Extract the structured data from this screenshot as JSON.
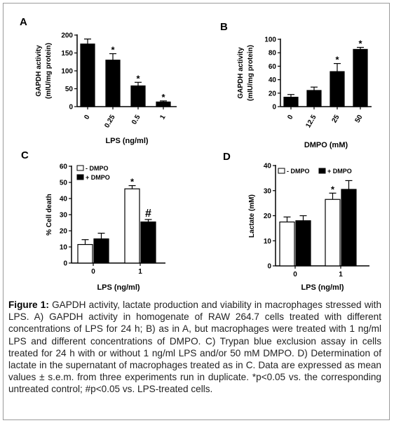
{
  "chart_data": [
    {
      "panel": "A",
      "type": "bar",
      "categories": [
        "0",
        "0.25",
        "0.5",
        "1"
      ],
      "values": [
        175,
        130,
        58,
        13
      ],
      "errors": [
        14,
        18,
        10,
        3
      ],
      "annotations": [
        "",
        "*",
        "*",
        "*"
      ],
      "xlabel": "LPS (ng/ml)",
      "ylabel": [
        "GAPDH activity",
        "(mIU/mg protein)"
      ],
      "yticks": [
        0,
        50,
        100,
        150,
        200
      ],
      "ylim": [
        0,
        200
      ],
      "bar_color": "#000000"
    },
    {
      "panel": "B",
      "type": "bar",
      "categories": [
        "0",
        "12.5",
        "25",
        "50"
      ],
      "values": [
        14,
        24,
        52,
        85
      ],
      "errors": [
        4,
        5,
        12,
        3
      ],
      "annotations": [
        "",
        "",
        "*",
        "*"
      ],
      "xlabel": "DMPO (mM)",
      "ylabel": [
        "GAPDH activity",
        "(mIU/mg protein)"
      ],
      "yticks": [
        0,
        20,
        40,
        60,
        80,
        100
      ],
      "ylim": [
        0,
        100
      ],
      "bar_color": "#000000"
    },
    {
      "panel": "C",
      "type": "bar",
      "categories": [
        "0",
        "1"
      ],
      "series": [
        {
          "name": "- DMPO",
          "values": [
            11.5,
            46
          ],
          "errors": [
            3,
            2
          ],
          "annotations": [
            "",
            "*"
          ],
          "color": "#ffffff"
        },
        {
          "name": "+ DMPO",
          "values": [
            15,
            25.5
          ],
          "errors": [
            3.5,
            1.5
          ],
          "annotations": [
            "",
            "#"
          ],
          "color": "#000000"
        }
      ],
      "xlabel": "LPS (ng/ml)",
      "ylabel": "% Cell death",
      "yticks": [
        0,
        10,
        20,
        30,
        40,
        50,
        60
      ],
      "ylim": [
        0,
        60
      ],
      "legend": "top-left"
    },
    {
      "panel": "D",
      "type": "bar",
      "categories": [
        "0",
        "1"
      ],
      "series": [
        {
          "name": "- DMPO",
          "values": [
            17.5,
            26.5
          ],
          "errors": [
            2,
            2.5
          ],
          "annotations": [
            "",
            "*"
          ],
          "color": "#ffffff"
        },
        {
          "name": "+ DMPO",
          "values": [
            18,
            30.5
          ],
          "errors": [
            2,
            3.5
          ],
          "annotations": [
            "",
            ""
          ],
          "color": "#000000"
        }
      ],
      "xlabel": "LPS (ng/ml)",
      "ylabel": "Lactate (mM)",
      "yticks": [
        0,
        10,
        20,
        30,
        40
      ],
      "ylim": [
        0,
        40
      ],
      "legend": "top"
    }
  ],
  "caption": {
    "lead": "Figure 1:",
    "body": " GAPDH activity, lactate production and viability in macrophages stressed with LPS. A) GAPDH activity in homogenate of RAW 264.7 cells treated with different concentrations of LPS for 24 h; B) as in A, but macrophages were treated with 1 ng/ml LPS and different concentrations of DMPO. C) Trypan blue exclusion assay in cells treated for 24 h with or without 1 ng/ml LPS and/or 50 mM DMPO. D) Determination of lactate in the supernatant of macrophages treated as in C.  Data are expressed as mean values  ± s.e.m. from three experiments run in duplicate. *p<0.05 vs. the corresponding untreated control; #p<0.05 vs. LPS-treated cells."
  }
}
